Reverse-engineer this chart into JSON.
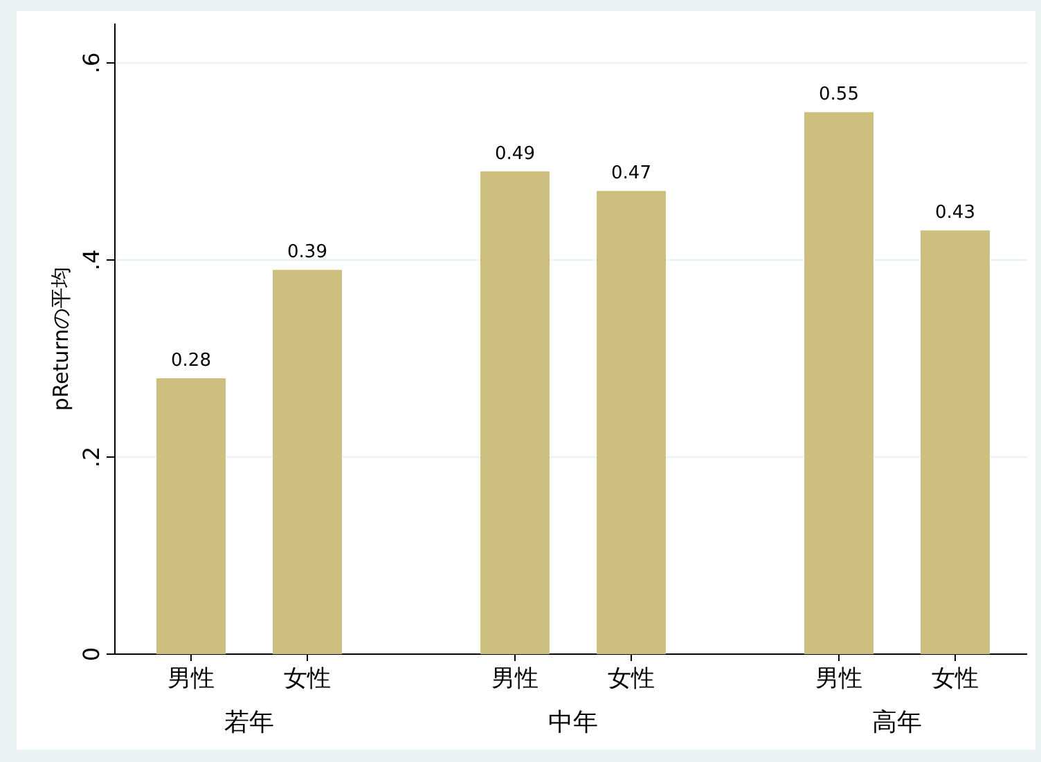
{
  "chart_data": {
    "type": "bar",
    "categories": [
      "男性",
      "女性",
      "男性",
      "女性",
      "男性",
      "女性"
    ],
    "values": [
      0.28,
      0.39,
      0.49,
      0.47,
      0.55,
      0.43
    ],
    "color": "#cdc07e",
    "ylabel": "pReturnの平均",
    "ylim": [
      0,
      0.64
    ],
    "yticks": [
      0,
      {
        "value": 0.2,
        "label": ".2"
      },
      {
        "value": 0.4,
        "label": ".4"
      },
      {
        "value": 0.6,
        "label": ".6"
      }
    ],
    "grid": "y",
    "data_labels": true,
    "annotations": [
      "若年",
      "中年",
      "高年"
    ]
  }
}
